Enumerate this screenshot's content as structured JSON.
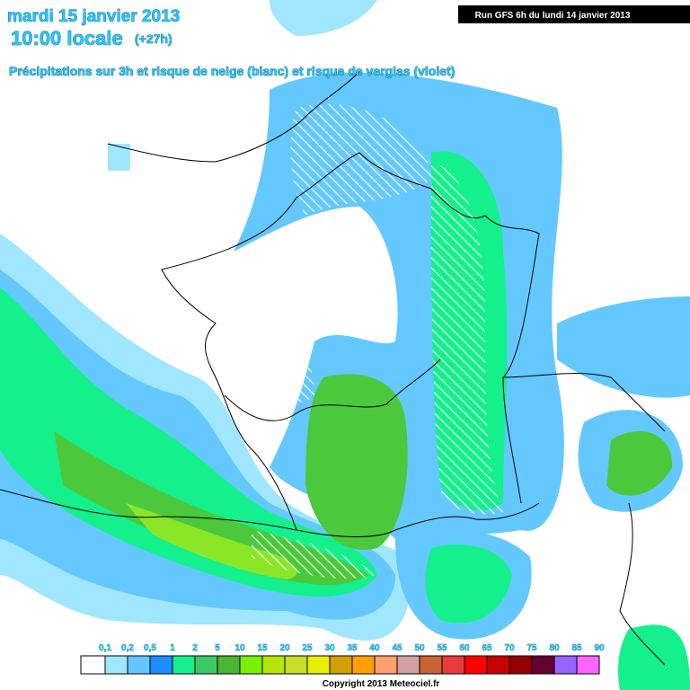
{
  "header": {
    "date": "mardi 15 janvier 2013",
    "time": "10:00 locale",
    "lead": "(+27h)",
    "subtitle": "Précipitations sur 3h et risque de neige (blanc) et risque de verglas (violet)",
    "run": "Run GFS 6h du lundi 14 janvier 2013"
  },
  "legend": {
    "labels": [
      "0,1",
      "0,2",
      "0,5",
      "1",
      "2",
      "5",
      "10",
      "15",
      "20",
      "25",
      "30",
      "35",
      "40",
      "45",
      "50",
      "55",
      "60",
      "65",
      "70",
      "75",
      "80",
      "85",
      "90"
    ],
    "colors": [
      "#ffffff",
      "#a0e6ff",
      "#64c8ff",
      "#1e8cff",
      "#14f08c",
      "#3cc864",
      "#4cb432",
      "#78f000",
      "#b4e600",
      "#c8dc28",
      "#e6f000",
      "#d2a000",
      "#ffa000",
      "#ffa070",
      "#d2a0a0",
      "#c86432",
      "#e63c3c",
      "#ff0000",
      "#c80000",
      "#960000",
      "#640032",
      "#9664ff",
      "#ff64ff"
    ]
  },
  "footer": {
    "copyright": "Copyright 2013 Meteociel.fr"
  }
}
